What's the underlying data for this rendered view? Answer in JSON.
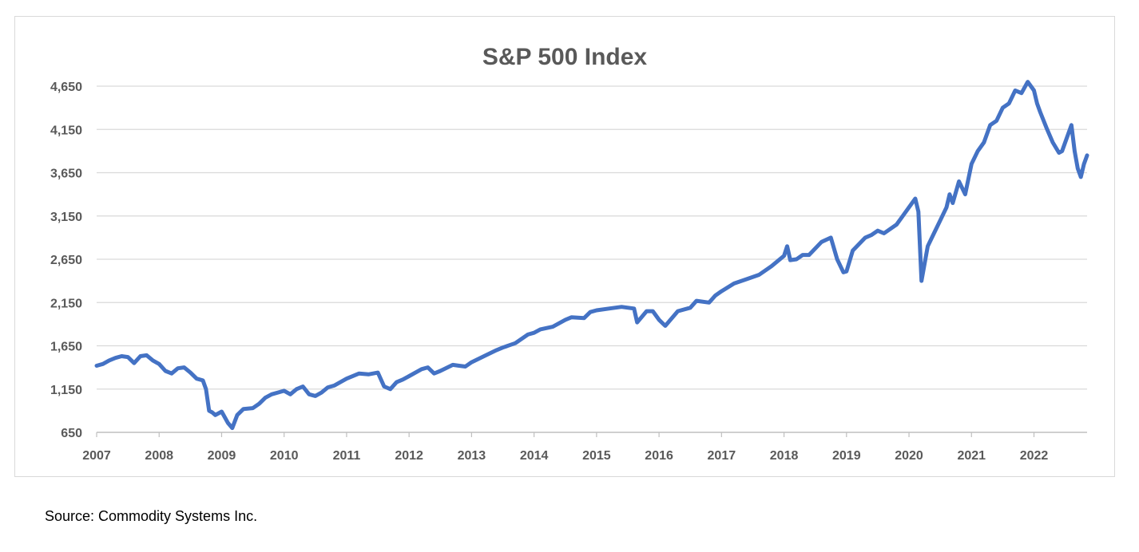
{
  "chart_data": {
    "type": "line",
    "title": "S&P 500 Index",
    "xlabel": "",
    "ylabel": "",
    "xlim": [
      2007.0,
      2022.85
    ],
    "ylim": [
      650,
      4650
    ],
    "x_ticks": [
      "2007",
      "2008",
      "2009",
      "2010",
      "2011",
      "2012",
      "2013",
      "2014",
      "2015",
      "2016",
      "2017",
      "2018",
      "2019",
      "2020",
      "2021",
      "2022"
    ],
    "y_ticks": [
      "650",
      "1,150",
      "1,650",
      "2,150",
      "2,650",
      "3,150",
      "3,650",
      "4,150",
      "4,650"
    ],
    "y_tick_values": [
      650,
      1150,
      1650,
      2150,
      2650,
      3150,
      3650,
      4150,
      4650
    ],
    "grid": "horizontal",
    "line_color": "#4472c4",
    "series": [
      {
        "name": "",
        "x": [
          2007.0,
          2007.1,
          2007.2,
          2007.3,
          2007.4,
          2007.5,
          2007.6,
          2007.7,
          2007.8,
          2007.9,
          2008.0,
          2008.1,
          2008.2,
          2008.3,
          2008.4,
          2008.5,
          2008.6,
          2008.7,
          2008.75,
          2008.8,
          2008.85,
          2008.9,
          2009.0,
          2009.1,
          2009.17,
          2009.25,
          2009.35,
          2009.5,
          2009.6,
          2009.7,
          2009.8,
          2009.9,
          2010.0,
          2010.1,
          2010.2,
          2010.3,
          2010.4,
          2010.5,
          2010.6,
          2010.7,
          2010.8,
          2010.9,
          2011.0,
          2011.2,
          2011.35,
          2011.5,
          2011.6,
          2011.7,
          2011.8,
          2011.9,
          2012.0,
          2012.2,
          2012.3,
          2012.4,
          2012.5,
          2012.7,
          2012.8,
          2012.9,
          2013.0,
          2013.2,
          2013.4,
          2013.5,
          2013.7,
          2013.9,
          2014.0,
          2014.1,
          2014.3,
          2014.5,
          2014.6,
          2014.8,
          2014.9,
          2015.0,
          2015.2,
          2015.4,
          2015.6,
          2015.65,
          2015.8,
          2015.9,
          2016.0,
          2016.1,
          2016.3,
          2016.5,
          2016.6,
          2016.8,
          2016.9,
          2017.0,
          2017.2,
          2017.4,
          2017.6,
          2017.8,
          2018.0,
          2018.05,
          2018.1,
          2018.2,
          2018.3,
          2018.4,
          2018.6,
          2018.75,
          2018.85,
          2018.95,
          2019.0,
          2019.1,
          2019.3,
          2019.4,
          2019.5,
          2019.6,
          2019.8,
          2019.9,
          2020.0,
          2020.1,
          2020.15,
          2020.2,
          2020.3,
          2020.4,
          2020.5,
          2020.6,
          2020.65,
          2020.7,
          2020.8,
          2020.9,
          2021.0,
          2021.1,
          2021.2,
          2021.3,
          2021.4,
          2021.5,
          2021.6,
          2021.7,
          2021.8,
          2021.9,
          2022.0,
          2022.05,
          2022.1,
          2022.2,
          2022.3,
          2022.4,
          2022.45,
          2022.5,
          2022.6,
          2022.65,
          2022.7,
          2022.75,
          2022.8,
          2022.85
        ],
        "y": [
          1420,
          1440,
          1480,
          1510,
          1530,
          1520,
          1450,
          1530,
          1540,
          1480,
          1440,
          1360,
          1330,
          1390,
          1400,
          1340,
          1270,
          1250,
          1150,
          900,
          880,
          850,
          890,
          760,
          700,
          850,
          920,
          930,
          980,
          1050,
          1090,
          1110,
          1130,
          1090,
          1150,
          1180,
          1090,
          1070,
          1110,
          1170,
          1190,
          1230,
          1270,
          1330,
          1320,
          1340,
          1180,
          1150,
          1230,
          1260,
          1300,
          1380,
          1400,
          1330,
          1360,
          1430,
          1420,
          1410,
          1460,
          1530,
          1600,
          1630,
          1680,
          1780,
          1800,
          1840,
          1870,
          1950,
          1980,
          1970,
          2040,
          2060,
          2080,
          2100,
          2080,
          1920,
          2050,
          2050,
          1950,
          1880,
          2050,
          2090,
          2170,
          2150,
          2230,
          2280,
          2370,
          2420,
          2470,
          2570,
          2690,
          2800,
          2640,
          2650,
          2700,
          2700,
          2850,
          2900,
          2650,
          2500,
          2510,
          2750,
          2900,
          2930,
          2980,
          2950,
          3050,
          3150,
          3250,
          3350,
          3200,
          2400,
          2800,
          2950,
          3100,
          3250,
          3400,
          3300,
          3550,
          3400,
          3750,
          3900,
          4000,
          4200,
          4250,
          4400,
          4450,
          4600,
          4570,
          4700,
          4600,
          4450,
          4350,
          4170,
          4000,
          3880,
          3900,
          4000,
          4200,
          3900,
          3700,
          3600,
          3750,
          3850
        ]
      }
    ]
  },
  "source": "Source: Commodity Systems Inc."
}
